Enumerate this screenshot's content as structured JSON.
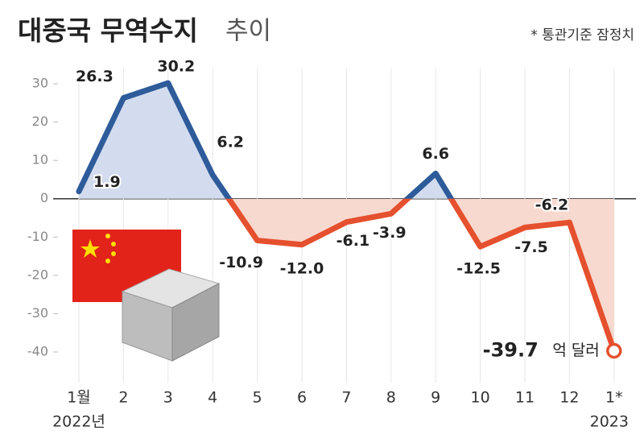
{
  "chart_data": {
    "type": "line",
    "title": "대중국 무역수지",
    "subtitle": "추이",
    "note": "* 통관기준 잠정치",
    "categories": [
      "1월",
      "2",
      "3",
      "4",
      "5",
      "6",
      "7",
      "8",
      "9",
      "10",
      "11",
      "12",
      "1*"
    ],
    "year_labels": [
      "2022년",
      null,
      null,
      null,
      null,
      null,
      null,
      null,
      null,
      null,
      null,
      null,
      "2023"
    ],
    "values": [
      1.9,
      26.3,
      30.2,
      6.2,
      -10.9,
      -12.0,
      -6.1,
      -3.9,
      6.6,
      -12.5,
      -7.5,
      -6.2,
      -39.7
    ],
    "value_labels": [
      "1.9",
      "26.3",
      "30.2",
      "6.2",
      "-10.9",
      "-12.0",
      "-6.1",
      "-3.9",
      "6.6",
      "-12.5",
      "-7.5",
      "-6.2",
      "-39.7"
    ],
    "last_value_unit": "억 달러",
    "color_positive": "#2e5b9a",
    "color_negative": "#e5502e",
    "area_positive": "#d3dcee",
    "area_negative": "#f8d9cf",
    "ylim": [
      -48,
      34
    ],
    "yticks": [
      30,
      20,
      10,
      0,
      -10,
      -20,
      -30,
      -40
    ],
    "grid": true
  }
}
